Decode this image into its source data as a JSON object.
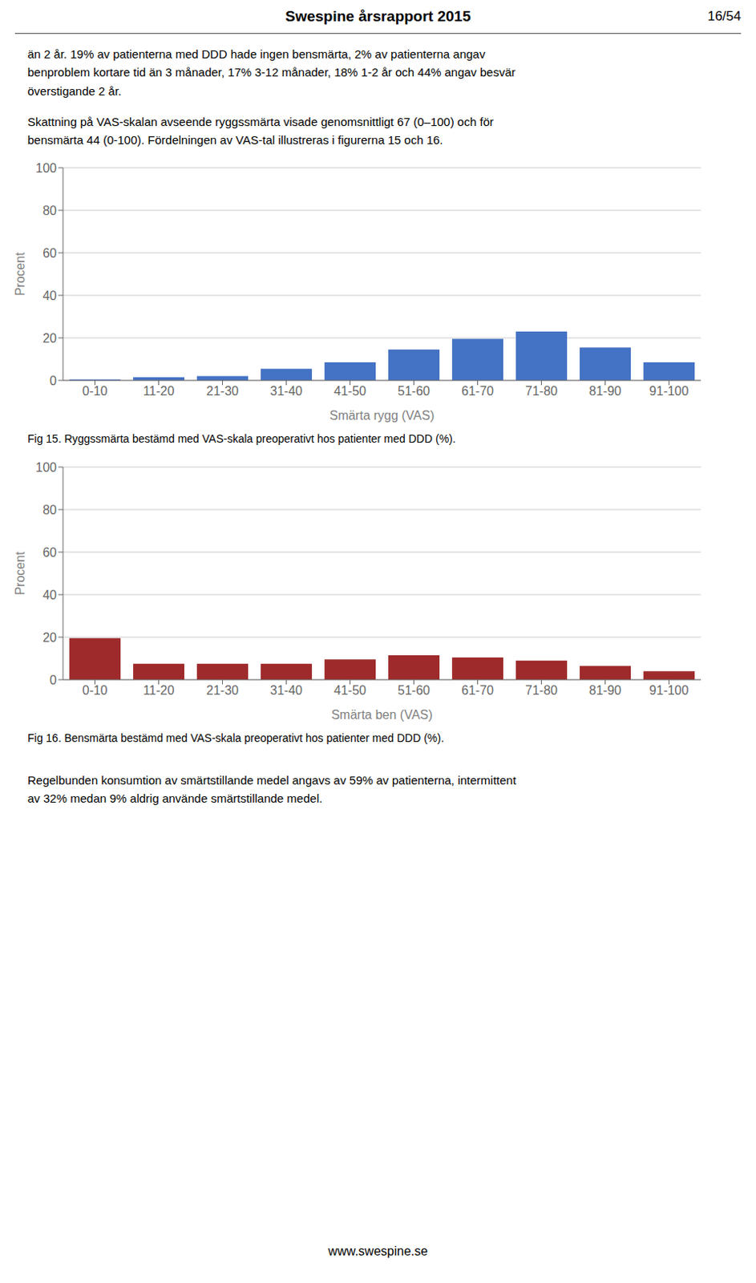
{
  "title": "Swespine årsrapport 2015",
  "annotations": [
    "16/54",
    "än 2 år. 19% av patienterna med DDD hade ingen bensmärta, 2% av patienterna angav\nbenproblem kortare tid än 3 månader, 17% 3-12 månader, 18% 1-2 år och 44% angav besvär\növerstigande 2 år.",
    "Skattning på VAS-skalan avseende ryggssmärta visade genomsnittligt 67 (0–100) och för\nbensmärta 44 (0-100). Fördelningen av VAS-tal illustreras i figurerna 15 och 16.",
    "Regelbunden konsumtion av smärtstillande medel angavs av 59% av patienterna, intermittent\nav 32% medan 9% aldrig använde smärtstillande medel.",
    "www.swespine.se"
  ],
  "chart_data": [
    {
      "type": "bar",
      "title": "Fig 15. Ryggssmärta bestämd med VAS-skala preoperativt hos patienter med DDD (%).",
      "categories": [
        "0-10",
        "11-20",
        "21-30",
        "31-40",
        "41-50",
        "51-60",
        "61-70",
        "71-80",
        "81-90",
        "91-100"
      ],
      "values": [
        0.5,
        1.5,
        2.0,
        5.5,
        8.5,
        14.5,
        19.5,
        23.0,
        15.5,
        8.5
      ],
      "color": "#4472C4",
      "xlabel": "Smärta rygg (VAS)",
      "ylabel": "Procent",
      "ylim": [
        0,
        100
      ],
      "yticks": [
        0,
        20,
        40,
        60,
        80,
        100
      ],
      "grid": true
    },
    {
      "type": "bar",
      "title": "Fig 16. Bensmärta bestämd med VAS-skala preoperativt hos patienter med DDD (%).",
      "categories": [
        "0-10",
        "11-20",
        "21-30",
        "31-40",
        "41-50",
        "51-60",
        "61-70",
        "71-80",
        "81-90",
        "91-100"
      ],
      "values": [
        19.5,
        7.5,
        7.5,
        7.5,
        9.5,
        11.5,
        10.5,
        9.0,
        6.5,
        4.0
      ],
      "color": "#9E2A2B",
      "xlabel": "Smärta ben (VAS)",
      "ylabel": "Procent",
      "ylim": [
        0,
        100
      ],
      "yticks": [
        0,
        20,
        40,
        60,
        80,
        100
      ],
      "grid": true
    }
  ]
}
